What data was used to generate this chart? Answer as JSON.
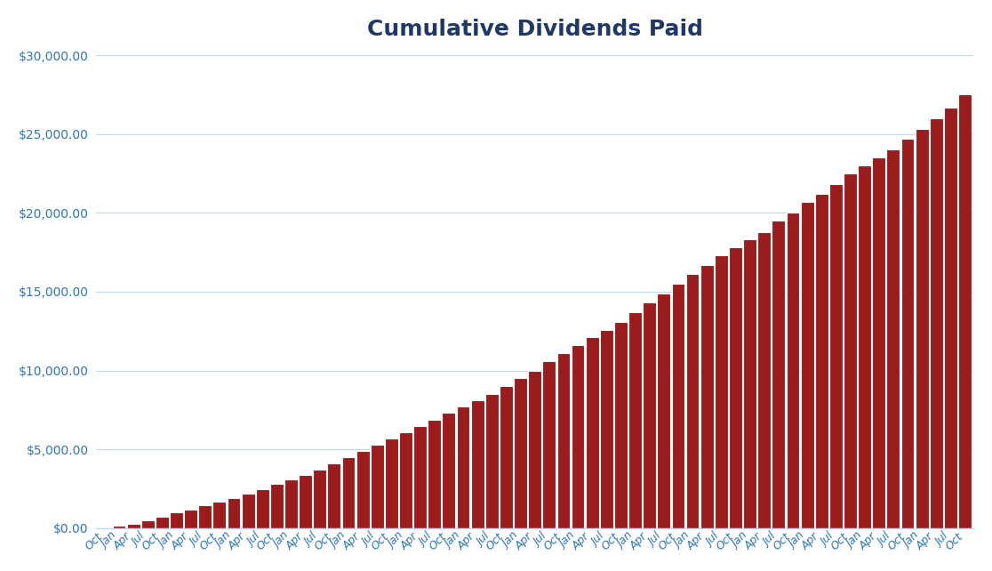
{
  "title": "Cumulative Dividends Paid",
  "title_color": "#1F3864",
  "title_fontsize": 18,
  "title_fontweight": "bold",
  "bar_color": "#9B1C1C",
  "bar_edge_color": "#FFFFFF",
  "bar_edge_width": 0.8,
  "background_color": "#FFFFFF",
  "grid_color": "#BDD7EE",
  "ylabel_color": "#2E75B6",
  "xlabel_color": "#2E75B6",
  "ylim": [
    0,
    30000
  ],
  "ytick_step": 5000,
  "values": [
    50,
    150,
    300,
    500,
    750,
    1000,
    1200,
    1450,
    1700,
    1900,
    2200,
    2500,
    2800,
    3100,
    3400,
    3700,
    4100,
    4500,
    4900,
    5300,
    5700,
    6100,
    6500,
    6900,
    7300,
    7700,
    8100,
    8500,
    9000,
    9500,
    10000,
    10600,
    11100,
    11600,
    12100,
    12600,
    13100,
    13700,
    14300,
    14900,
    15500,
    16100,
    16700,
    17300,
    17800,
    18300,
    18800,
    19500,
    20000,
    20700,
    21200,
    21800,
    22500,
    23000,
    23500,
    24000,
    24700,
    25300,
    26000,
    26700,
    27500
  ],
  "x_labels": [
    "Oct",
    "Jan",
    "Apr",
    "Jul",
    "Oct",
    "Jan",
    "Apr",
    "Jul",
    "Oct",
    "Jan",
    "Apr",
    "Jul",
    "Oct",
    "Jan",
    "Apr",
    "Jul",
    "Oct",
    "Jan",
    "Apr",
    "Jul",
    "Oct",
    "Jan",
    "Apr",
    "Jul",
    "Oct",
    "Jan",
    "Apr",
    "Jul",
    "Oct",
    "Jan",
    "Apr",
    "Jul",
    "Oct",
    "Jan",
    "Apr",
    "Jul",
    "Oct",
    "Jan",
    "Apr",
    "Jul",
    "Oct",
    "Jan",
    "Apr",
    "Jul",
    "Oct",
    "Jan",
    "Apr",
    "Jul",
    "Oct",
    "Jan",
    "Apr",
    "Jul",
    "Oct",
    "Jan",
    "Apr",
    "Jul",
    "Oct",
    "Jan",
    "Apr",
    "Jul",
    "Oct"
  ],
  "xlabel_fontsize": 9,
  "ylabel_fontsize": 10,
  "tick_color": "#2E75B6",
  "spine_color": "#BDD7EE"
}
